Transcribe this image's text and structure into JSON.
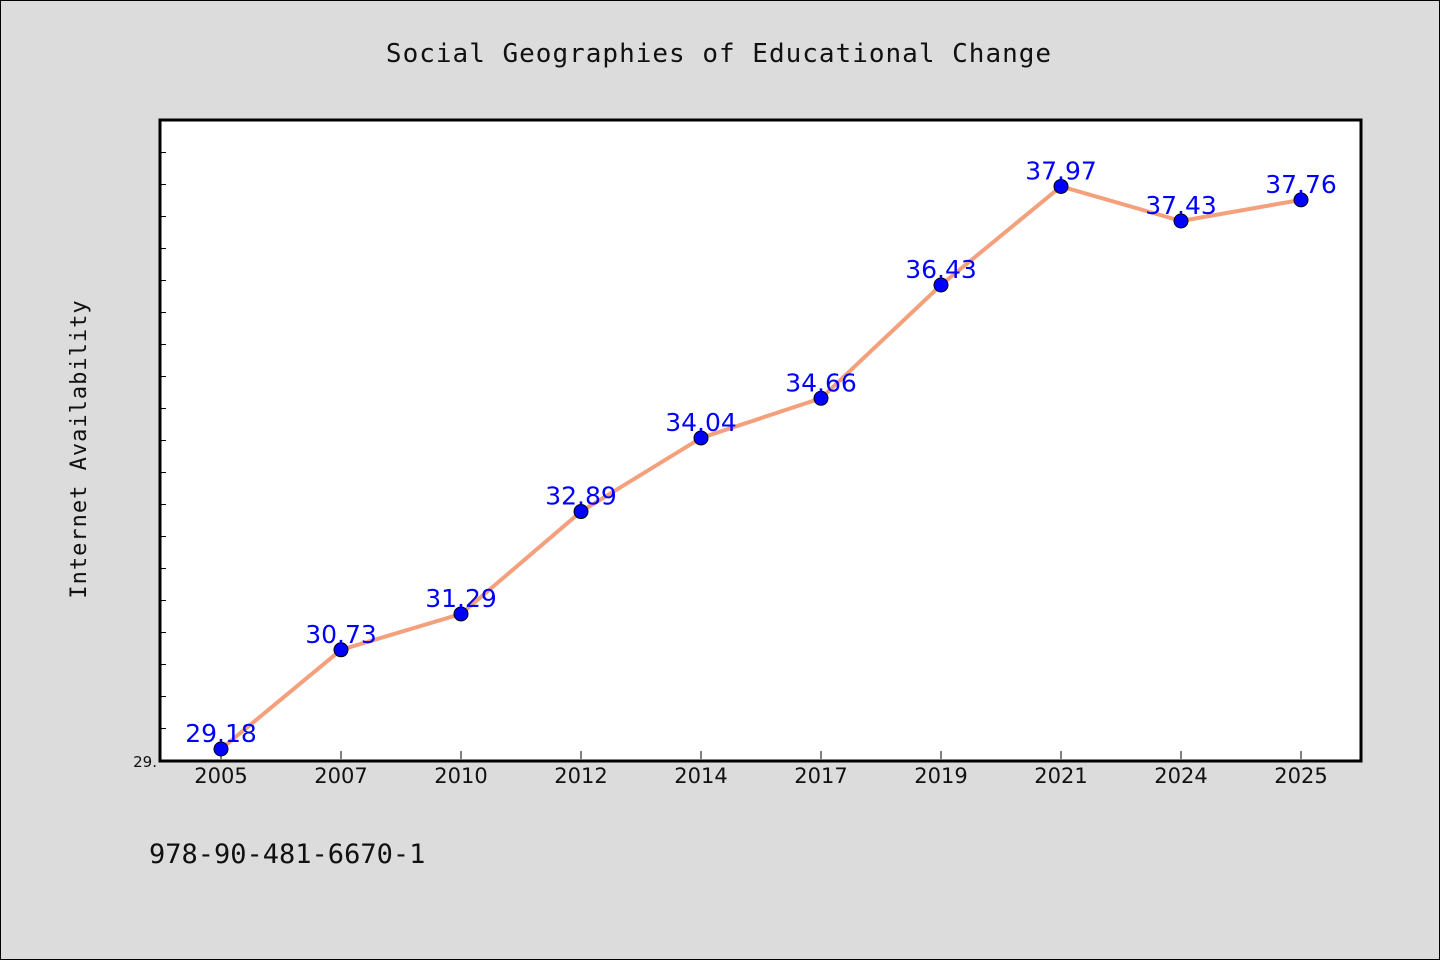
{
  "chart_data": {
    "type": "line",
    "title": "Social Geographies of Educational Change",
    "xlabel": "",
    "ylabel": "Internet Availability",
    "categories": [
      "2005",
      "2007",
      "2010",
      "2012",
      "2014",
      "2017",
      "2019",
      "2021",
      "2024",
      "2025"
    ],
    "series": [
      {
        "values": [
          29.18,
          30.73,
          31.29,
          32.89,
          34.04,
          34.66,
          36.43,
          37.97,
          37.43,
          37.76
        ],
        "data_labels": [
          "29.18",
          "30.73",
          "31.29",
          "32.89",
          "34.04",
          "34.66",
          "36.43",
          "37.97",
          "37.43",
          "37.76"
        ],
        "line_color": "#f4a07c",
        "marker_color": "#0000ff"
      }
    ],
    "ylim": [
      29.0,
      39.0
    ],
    "y_tick_labels": [
      "29."
    ],
    "grid": false,
    "legend": "none"
  },
  "footer": {
    "isbn": "978-90-481-6670-1"
  },
  "colors": {
    "background": "#dcdcdc",
    "plot_background": "#ffffff",
    "line": "#f4a07c",
    "marker": "#0000ff",
    "data_label": "#0000ff"
  }
}
